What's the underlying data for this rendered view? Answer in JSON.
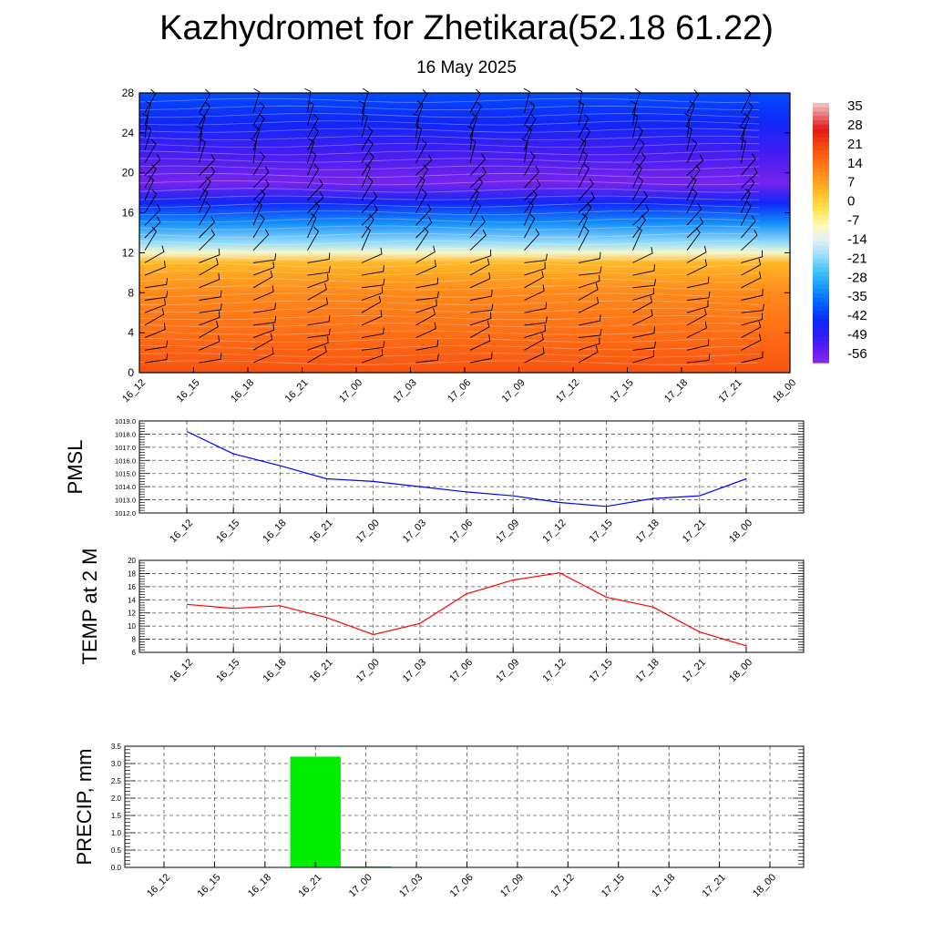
{
  "title": "Kazhydromet for Zhetikara(52.18 61.22)",
  "subtitle": "16 May 2025",
  "colors": {
    "pmsl_line": "#0000ff",
    "temp_line": "#ff0000",
    "precip_bar": "#00ee00",
    "grid": "#555555"
  },
  "chart_data": [
    {
      "type": "heatmap",
      "title": "",
      "xlabel": "",
      "ylabel": "",
      "x": [
        "16_12",
        "16_15",
        "16_18",
        "16_21",
        "17_00",
        "17_03",
        "17_06",
        "17_09",
        "17_12",
        "17_15",
        "17_18",
        "17_21",
        "18_00"
      ],
      "y_ticks": [
        "0",
        "4",
        "8",
        "12",
        "16",
        "20",
        "24",
        "28"
      ],
      "ylim": [
        0,
        28
      ],
      "colorbar": {
        "labels": [
          "35",
          "28",
          "21",
          "14",
          "7",
          "0",
          "-7",
          "-14",
          "-21",
          "-28",
          "-35",
          "-42",
          "-49",
          "-56"
        ],
        "range": [
          -60,
          38
        ]
      },
      "temperature_profile": [
        {
          "level": 0,
          "value": 20
        },
        {
          "level": 4,
          "value": 16
        },
        {
          "level": 8,
          "value": 12
        },
        {
          "level": 11,
          "value": 5
        },
        {
          "level": 12,
          "value": -10
        },
        {
          "level": 13,
          "value": -20
        },
        {
          "level": 15,
          "value": -33
        },
        {
          "level": 17,
          "value": -45
        },
        {
          "level": 19,
          "value": -58
        },
        {
          "level": 22,
          "value": -52
        },
        {
          "level": 25,
          "value": -45
        },
        {
          "level": 28,
          "value": -40
        }
      ],
      "overlay": "wind barbs"
    },
    {
      "type": "line",
      "title": "",
      "xlabel": "",
      "ylabel": "PMSL",
      "x": [
        "16_12",
        "16_15",
        "16_18",
        "16_21",
        "17_00",
        "17_03",
        "17_06",
        "17_09",
        "17_12",
        "17_15",
        "17_18",
        "17_21",
        "18_00"
      ],
      "series": [
        {
          "values": [
            1018.2,
            1016.5,
            1015.6,
            1014.6,
            1014.4,
            1014.0,
            1013.6,
            1013.3,
            1012.8,
            1012.5,
            1013.1,
            1013.3,
            1014.6
          ]
        }
      ],
      "ylim": [
        1012.0,
        1019.0
      ],
      "y_ticks": [
        "1012.0",
        "1013.0",
        "1014.0",
        "1015.0",
        "1016.0",
        "1017.0",
        "1018.0",
        "1019.0"
      ],
      "grid": true
    },
    {
      "type": "line",
      "title": "",
      "xlabel": "",
      "ylabel": "TEMP at 2 M",
      "x": [
        "16_12",
        "16_15",
        "16_18",
        "16_21",
        "17_00",
        "17_03",
        "17_06",
        "17_09",
        "17_12",
        "17_15",
        "17_18",
        "17_21",
        "18_00"
      ],
      "series": [
        {
          "values": [
            13.3,
            12.7,
            13.1,
            11.3,
            8.7,
            10.4,
            14.9,
            17.0,
            18.1,
            14.4,
            12.9,
            9.1,
            7.0
          ]
        }
      ],
      "ylim": [
        6,
        20
      ],
      "y_ticks": [
        "6",
        "8",
        "10",
        "12",
        "14",
        "16",
        "18",
        "20"
      ],
      "grid": true
    },
    {
      "type": "bar",
      "title": "",
      "xlabel": "",
      "ylabel": "PRECIP, mm",
      "categories": [
        "16_12",
        "16_15",
        "16_18",
        "16_21",
        "17_00",
        "17_03",
        "17_06",
        "17_09",
        "17_12",
        "17_15",
        "17_18",
        "17_21",
        "18_00"
      ],
      "values": [
        0,
        0,
        0,
        3.2,
        0.03,
        0,
        0,
        0,
        0,
        0,
        0,
        0,
        0
      ],
      "ylim": [
        0,
        3.5
      ],
      "y_ticks": [
        "0.0",
        "0.5",
        "1.0",
        "1.5",
        "2.0",
        "2.5",
        "3.0",
        "3.5"
      ],
      "grid": true
    }
  ]
}
